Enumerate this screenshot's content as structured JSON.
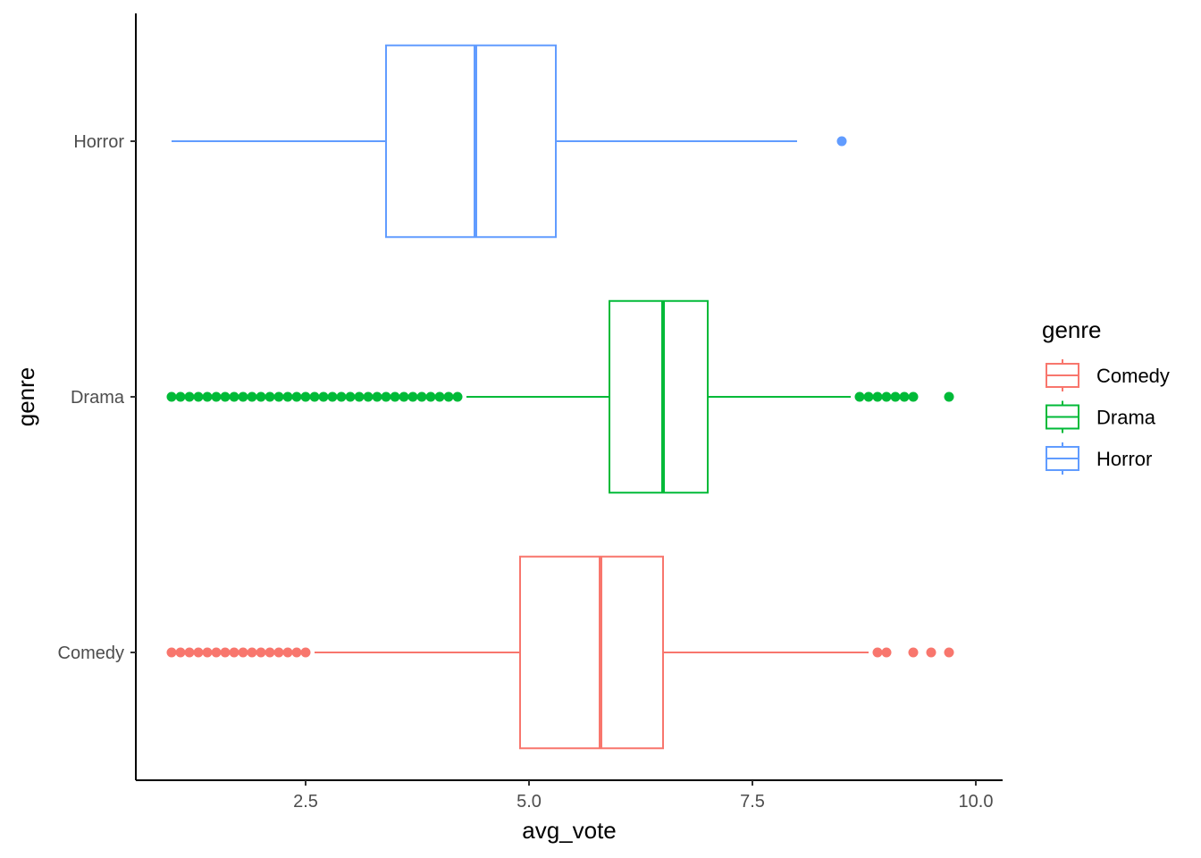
{
  "chart_data": {
    "type": "boxplot",
    "orientation": "horizontal",
    "xlabel": "avg_vote",
    "ylabel": "genre",
    "xlim": [
      0.6,
      10.3
    ],
    "x_ticks": [
      2.5,
      5.0,
      7.5,
      10.0
    ],
    "x_tick_labels": [
      "2.5",
      "5.0",
      "7.5",
      "10.0"
    ],
    "grid": false,
    "legend": {
      "title": "genre",
      "position": "right"
    },
    "series": [
      {
        "name": "Comedy",
        "color": "#F8766D",
        "whisker_low": 2.6,
        "q1": 4.9,
        "median": 5.8,
        "q3": 6.5,
        "whisker_high": 8.8,
        "outliers": [
          1.0,
          1.1,
          1.2,
          1.3,
          1.4,
          1.5,
          1.6,
          1.7,
          1.8,
          1.9,
          2.0,
          2.1,
          2.2,
          2.3,
          2.4,
          2.5,
          8.9,
          9.0,
          9.3,
          9.5,
          9.7
        ]
      },
      {
        "name": "Drama",
        "color": "#00BA38",
        "whisker_low": 4.3,
        "q1": 5.9,
        "median": 6.5,
        "q3": 7.0,
        "whisker_high": 8.6,
        "outliers": [
          1.0,
          1.1,
          1.2,
          1.3,
          1.4,
          1.5,
          1.6,
          1.7,
          1.8,
          1.9,
          2.0,
          2.1,
          2.2,
          2.3,
          2.4,
          2.5,
          2.6,
          2.7,
          2.8,
          2.9,
          3.0,
          3.1,
          3.2,
          3.3,
          3.4,
          3.5,
          3.6,
          3.7,
          3.8,
          3.9,
          4.0,
          4.1,
          4.2,
          8.7,
          8.8,
          8.9,
          9.0,
          9.1,
          9.2,
          9.3,
          9.7
        ]
      },
      {
        "name": "Horror",
        "color": "#619CFF",
        "whisker_low": 1.0,
        "q1": 3.4,
        "median": 4.4,
        "q3": 5.3,
        "whisker_high": 8.0,
        "outliers": [
          8.5
        ]
      }
    ]
  }
}
